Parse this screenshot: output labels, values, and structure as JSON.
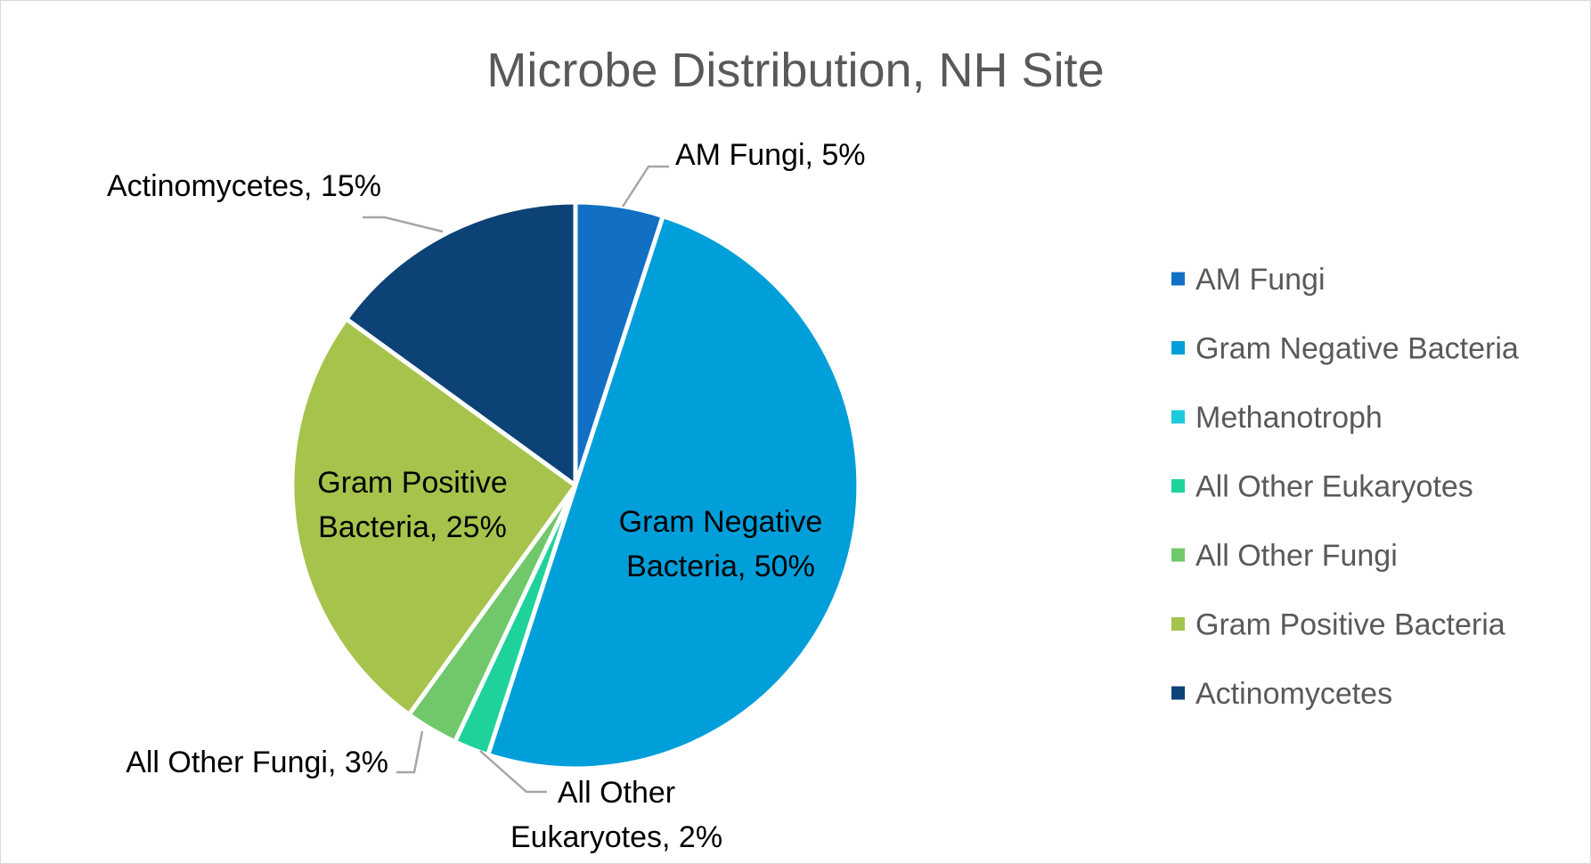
{
  "chart_data": {
    "type": "pie",
    "title": "Microbe Distribution, NH Site",
    "legend_position": "right",
    "slices": [
      {
        "name": "AM Fungi",
        "value": 5,
        "color": "#1170c4",
        "label_lines": [
          "AM Fungi, 5%"
        ]
      },
      {
        "name": "Gram Negative Bacteria",
        "value": 50,
        "color": "#009fda",
        "label_lines": [
          "Gram Negative",
          "Bacteria, 50%"
        ]
      },
      {
        "name": "Methanotroph",
        "value": 0,
        "color": "#1ccadb",
        "label_lines": []
      },
      {
        "name": "All Other Eukaryotes",
        "value": 2,
        "color": "#1fd29c",
        "label_lines": [
          "All Other",
          "Eukaryotes, 2%"
        ]
      },
      {
        "name": "All Other Fungi",
        "value": 3,
        "color": "#71c86b",
        "label_lines": [
          "All Other Fungi, 3%"
        ]
      },
      {
        "name": "Gram Positive Bacteria",
        "value": 25,
        "color": "#a6c34c",
        "label_lines": [
          "Gram Positive",
          "Bacteria, 25%"
        ]
      },
      {
        "name": "Actinomycetes",
        "value": 15,
        "color": "#0c4276",
        "label_lines": [
          "Actinomycetes, 15%"
        ]
      }
    ]
  }
}
